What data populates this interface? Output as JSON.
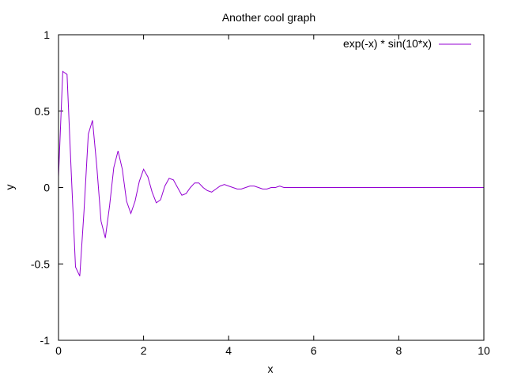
{
  "chart_data": {
    "type": "line",
    "title": "Another cool graph",
    "xlabel": "x",
    "ylabel": "y",
    "xlim": [
      0,
      10
    ],
    "ylim": [
      -1,
      1
    ],
    "xticks": [
      0,
      2,
      4,
      6,
      8,
      10
    ],
    "yticks": [
      -1,
      -0.5,
      0,
      0.5,
      1
    ],
    "grid": false,
    "legend": "top-right",
    "series": [
      {
        "name": "exp(-x) * sin(10*x)",
        "color": "#9400d3",
        "x": [
          0,
          0.1,
          0.2,
          0.3,
          0.4,
          0.5,
          0.6,
          0.7,
          0.8,
          0.9,
          1.0,
          1.1,
          1.2,
          1.3,
          1.4,
          1.5,
          1.6,
          1.7,
          1.8,
          1.9,
          2.0,
          2.1,
          2.2,
          2.3,
          2.4,
          2.5,
          2.6,
          2.7,
          2.8,
          2.9,
          3.0,
          3.1,
          3.2,
          3.3,
          3.4,
          3.5,
          3.6,
          3.7,
          3.8,
          3.9,
          4.0,
          4.1,
          4.2,
          4.3,
          4.4,
          4.5,
          4.6,
          4.7,
          4.8,
          4.9,
          5.0,
          5.1,
          5.2,
          5.3,
          5.4,
          5.5,
          5.6,
          5.7,
          5.8,
          5.9,
          6.0,
          6.1,
          6.2,
          6.3,
          6.4,
          6.5,
          6.6,
          6.7,
          6.8,
          6.9,
          7.0,
          7.5,
          8.0,
          8.5,
          9.0,
          9.5,
          10.0
        ],
        "y": [
          0.07,
          0.76,
          0.74,
          0.1,
          -0.52,
          -0.58,
          -0.15,
          0.35,
          0.44,
          0.14,
          -0.22,
          -0.33,
          -0.12,
          0.13,
          0.24,
          0.12,
          -0.09,
          -0.17,
          -0.09,
          0.04,
          0.12,
          0.07,
          -0.03,
          -0.1,
          -0.08,
          0.01,
          0.06,
          0.05,
          0.0,
          -0.05,
          -0.04,
          0.0,
          0.03,
          0.03,
          0.0,
          -0.02,
          -0.03,
          -0.01,
          0.01,
          0.02,
          0.01,
          0.0,
          -0.01,
          -0.01,
          0.0,
          0.01,
          0.01,
          0.0,
          -0.01,
          -0.01,
          0.0,
          0.0,
          0.01,
          0.0,
          0.0,
          0.0,
          0.0,
          0.0,
          0.0,
          0.0,
          0.0,
          0.0,
          0.0,
          0.0,
          0.0,
          0.0,
          0.0,
          0.0,
          0.0,
          0.0,
          0.0,
          0.0,
          0.0,
          0.0,
          0.0,
          0.0,
          0.0
        ]
      }
    ]
  }
}
